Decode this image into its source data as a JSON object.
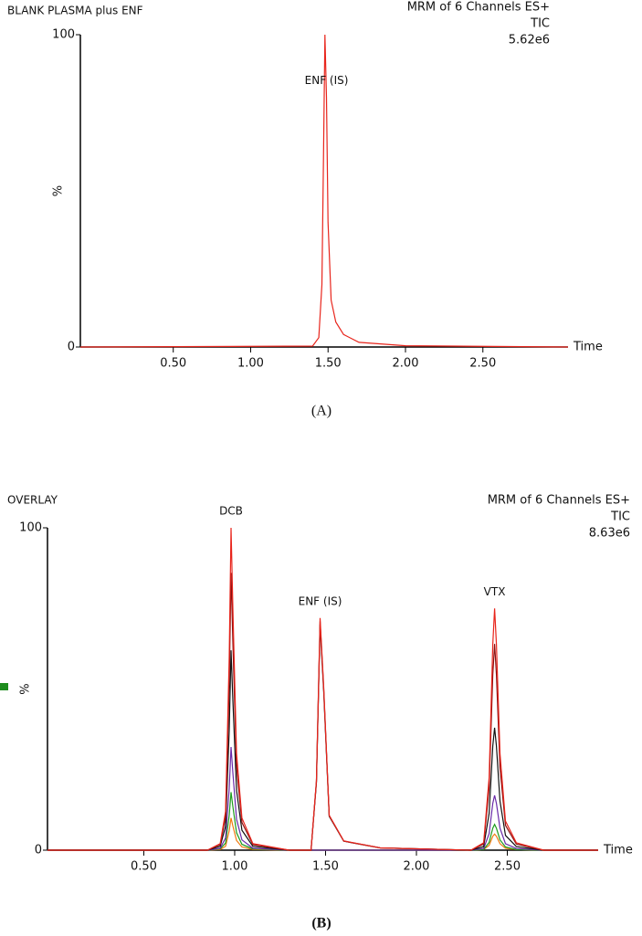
{
  "chart_data": [
    {
      "type": "line",
      "title": "BLANK PLASMA plus ENF",
      "title_color": "#e8251c",
      "channel_info": [
        "MRM of 6 Channels ES+",
        "TIC",
        "5.62e6"
      ],
      "channel_info_color": "#e8251c",
      "peak_labels": [
        {
          "text": "ENF (IS)",
          "x": 1.49
        }
      ],
      "ylabel": "%",
      "xlabel": "Time",
      "caption": "(A)",
      "xlim": [
        -0.1,
        3.05
      ],
      "ylim": [
        0,
        100
      ],
      "xticks": [
        {
          "value": 0.5,
          "label": "0.50"
        },
        {
          "value": 1.0,
          "label": "1.00"
        },
        {
          "value": 1.5,
          "label": "1.50"
        },
        {
          "value": 2.0,
          "label": "2.00"
        },
        {
          "value": 2.5,
          "label": "2.50"
        }
      ],
      "yticks": [
        0,
        100
      ],
      "x": [
        -0.1,
        1.4,
        1.44,
        1.46,
        1.47,
        1.48,
        1.49,
        1.5,
        1.52,
        1.55,
        1.6,
        1.7,
        2.0,
        3.05
      ],
      "series": [
        {
          "color": "#e8251c",
          "values": [
            0,
            0.3,
            3,
            20,
            60,
            100,
            80,
            40,
            15,
            8,
            4,
            1.5,
            0.4,
            0
          ]
        }
      ]
    },
    {
      "type": "line",
      "title": "OVERLAY",
      "title_color": "#e8251c",
      "channel_info": [
        "MRM of 6 Channels ES+",
        "TIC",
        "8.63e6"
      ],
      "channel_info_color": "#1e8c1e",
      "peak_labels": [
        {
          "text": "DCB",
          "x": 0.98
        },
        {
          "text": "ENF (IS)",
          "x": 1.47
        },
        {
          "text": "VTX",
          "x": 2.43
        }
      ],
      "ylabel": "%",
      "xlabel": "Time",
      "caption": "(B)",
      "xlim": [
        -0.03,
        3.0
      ],
      "ylim": [
        0,
        100
      ],
      "xticks": [
        {
          "value": 0.5,
          "label": "0.50"
        },
        {
          "value": 1.0,
          "label": "1.00"
        },
        {
          "value": 1.5,
          "label": "1.50"
        },
        {
          "value": 2.0,
          "label": "2.00"
        },
        {
          "value": 2.5,
          "label": "2.50"
        }
      ],
      "yticks": [
        0,
        100
      ],
      "x": [
        -0.03,
        0.85,
        0.92,
        0.95,
        0.97,
        0.98,
        0.99,
        1.01,
        1.04,
        1.1,
        1.3,
        1.42,
        1.45,
        1.47,
        1.49,
        1.52,
        1.6,
        1.8,
        2.3,
        2.37,
        2.4,
        2.42,
        2.43,
        2.44,
        2.46,
        2.49,
        2.55,
        2.7,
        3.0
      ],
      "series": [
        {
          "color": "#f07a10",
          "values": [
            0,
            0,
            0.2,
            1.2,
            6,
            10,
            7.5,
            3,
            1,
            0.2,
            0,
            0,
            0,
            0,
            0,
            0,
            0,
            0,
            0,
            0.2,
            1.5,
            4.3,
            5,
            4.3,
            2,
            0.6,
            0.2,
            0,
            0
          ]
        },
        {
          "color": "#1e9c1e",
          "values": [
            0,
            0,
            0.4,
            2.2,
            10.8,
            18,
            13.5,
            5.4,
            1.8,
            0.4,
            0,
            0,
            0,
            0,
            0,
            0,
            0,
            0,
            0,
            0.2,
            2.4,
            6.8,
            8,
            6.8,
            3.2,
            1,
            0.2,
            0,
            0
          ]
        },
        {
          "color": "#6a2aa8",
          "values": [
            0,
            0,
            0.6,
            3.8,
            19.2,
            32,
            24,
            9.6,
            3.2,
            0.6,
            0,
            0,
            0,
            0,
            0,
            0,
            0,
            0,
            0,
            0.5,
            5.1,
            14.5,
            17,
            14.5,
            6.8,
            2,
            0.5,
            0,
            0
          ]
        },
        {
          "color": "#111111",
          "values": [
            0,
            0,
            1.2,
            7.4,
            37.2,
            62,
            46.5,
            18.6,
            6.2,
            1.2,
            0,
            0,
            21,
            70,
            49,
            10.5,
            2.8,
            0.7,
            0,
            1.1,
            11.4,
            32.3,
            38,
            32.3,
            15.2,
            4.6,
            1.1,
            0,
            0
          ]
        },
        {
          "color": "#8b1010",
          "values": [
            0,
            0,
            1.7,
            10.3,
            51.6,
            86,
            64.5,
            25.8,
            8.6,
            1.7,
            0,
            0,
            21.3,
            71,
            49.7,
            10.7,
            2.8,
            0.7,
            0,
            1.9,
            19.2,
            54.4,
            64,
            54.4,
            25.6,
            7.7,
            1.9,
            0,
            0
          ]
        },
        {
          "color": "#e8251c",
          "values": [
            0,
            0,
            2,
            12,
            60,
            100,
            75,
            30,
            10,
            2,
            0,
            0,
            21.6,
            72,
            50.4,
            10.8,
            2.9,
            0.7,
            0,
            2.3,
            22.5,
            63.8,
            75,
            63.8,
            30,
            9,
            2.3,
            0,
            0
          ]
        }
      ]
    }
  ]
}
